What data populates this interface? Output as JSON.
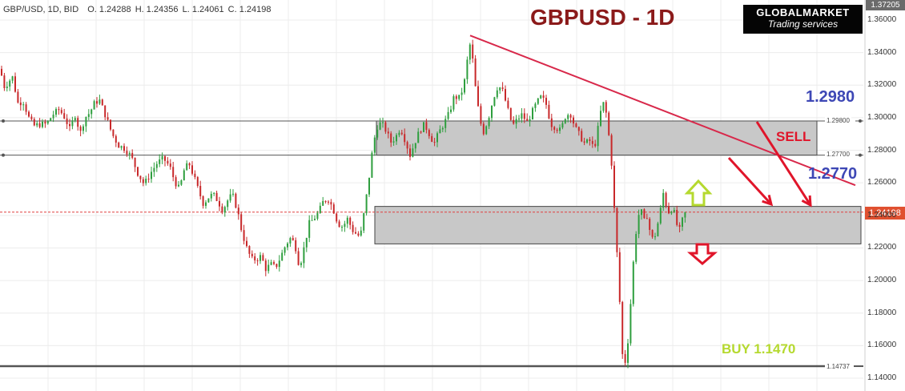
{
  "header": {
    "symbol": "GBP/USD, 1D, BID",
    "open": "O. 1.24288",
    "high": "H. 1.24356",
    "low": "L. 1.24061",
    "close": "C. 1.24198"
  },
  "title": "GBPUSD - 1D",
  "logo": {
    "top": "GLOBALMARKET",
    "bottom": "Trading services"
  },
  "annotations": {
    "level_upper": "1.2980",
    "level_lower": "1.2770",
    "sell": "SELL",
    "buy": "BUY 1.1470"
  },
  "price_axis": {
    "top_value": "1.37205",
    "current_price": "1.24198",
    "ticks": [
      "1.36000",
      "1.34000",
      "1.32000",
      "1.30000",
      "1.28000",
      "1.26000",
      "1.24000",
      "1.22000",
      "1.20000",
      "1.18000",
      "1.16000",
      "1.14000"
    ]
  },
  "levels": {
    "l1": "1.29800",
    "l2": "1.27700",
    "l3": "1.14737"
  },
  "colors": {
    "candle_up": "#2e9e3e",
    "candle_down": "#c8282a",
    "zone_fill": "#c8c8c8",
    "trendline": "#d8284a",
    "arrow_down": "#e0152a",
    "arrow_up_outline": "#b5d92f"
  },
  "chart_data": {
    "type": "candlestick",
    "title": "GBPUSD - 1D",
    "ylim": [
      1.137,
      1.372
    ],
    "current_price": 1.24198,
    "horizontal_levels": [
      1.298,
      1.277,
      1.14737
    ],
    "zones": [
      {
        "low": 1.277,
        "high": 1.298
      },
      {
        "low": 1.2225,
        "high": 1.2455
      }
    ],
    "trendline": {
      "from": 1.3505,
      "to": 1.2585
    },
    "anchors": [
      [
        0,
        1.33
      ],
      [
        6,
        1.318
      ],
      [
        10,
        1.322
      ],
      [
        16,
        1.325
      ],
      [
        22,
        1.309
      ],
      [
        29,
        1.31
      ],
      [
        36,
        1.3
      ],
      [
        42,
        1.295
      ],
      [
        50,
        1.296
      ],
      [
        58,
        1.296
      ],
      [
        66,
        1.302
      ],
      [
        74,
        1.305
      ],
      [
        81,
        1.3
      ],
      [
        87,
        1.293
      ],
      [
        94,
        1.302
      ],
      [
        100,
        1.29
      ],
      [
        106,
        1.3
      ],
      [
        112,
        1.303
      ],
      [
        118,
        1.309
      ],
      [
        124,
        1.311
      ],
      [
        132,
        1.301
      ],
      [
        140,
        1.29
      ],
      [
        148,
        1.283
      ],
      [
        156,
        1.281
      ],
      [
        164,
        1.276
      ],
      [
        172,
        1.266
      ],
      [
        180,
        1.259
      ],
      [
        188,
        1.266
      ],
      [
        196,
        1.272
      ],
      [
        204,
        1.275
      ],
      [
        212,
        1.27
      ],
      [
        218,
        1.261
      ],
      [
        224,
        1.256
      ],
      [
        230,
        1.268
      ],
      [
        236,
        1.272
      ],
      [
        242,
        1.264
      ],
      [
        248,
        1.255
      ],
      [
        254,
        1.247
      ],
      [
        260,
        1.251
      ],
      [
        266,
        1.253
      ],
      [
        272,
        1.249
      ],
      [
        278,
        1.243
      ],
      [
        284,
        1.249
      ],
      [
        290,
        1.253
      ],
      [
        296,
        1.244
      ],
      [
        302,
        1.23
      ],
      [
        308,
        1.22
      ],
      [
        314,
        1.213
      ],
      [
        320,
        1.213
      ],
      [
        326,
        1.215
      ],
      [
        332,
        1.207
      ],
      [
        338,
        1.21
      ],
      [
        344,
        1.208
      ],
      [
        350,
        1.214
      ],
      [
        356,
        1.221
      ],
      [
        362,
        1.226
      ],
      [
        368,
        1.223
      ],
      [
        374,
        1.208
      ],
      [
        380,
        1.221
      ],
      [
        386,
        1.235
      ],
      [
        392,
        1.238
      ],
      [
        398,
        1.242
      ],
      [
        404,
        1.249
      ],
      [
        410,
        1.25
      ],
      [
        416,
        1.244
      ],
      [
        422,
        1.235
      ],
      [
        428,
        1.233
      ],
      [
        434,
        1.238
      ],
      [
        440,
        1.231
      ],
      [
        446,
        1.228
      ],
      [
        450,
        1.227
      ],
      [
        455,
        1.243
      ],
      [
        460,
        1.26
      ],
      [
        465,
        1.28
      ],
      [
        470,
        1.294
      ],
      [
        476,
        1.297
      ],
      [
        482,
        1.292
      ],
      [
        488,
        1.285
      ],
      [
        494,
        1.288
      ],
      [
        500,
        1.294
      ],
      [
        506,
        1.286
      ],
      [
        512,
        1.277
      ],
      [
        518,
        1.285
      ],
      [
        524,
        1.292
      ],
      [
        530,
        1.296
      ],
      [
        536,
        1.29
      ],
      [
        542,
        1.284
      ],
      [
        548,
        1.291
      ],
      [
        555,
        1.297
      ],
      [
        561,
        1.303
      ],
      [
        567,
        1.313
      ],
      [
        573,
        1.312
      ],
      [
        579,
        1.319
      ],
      [
        584,
        1.337
      ],
      [
        588,
        1.348
      ],
      [
        592,
        1.325
      ],
      [
        596,
        1.309
      ],
      [
        600,
        1.297
      ],
      [
        604,
        1.291
      ],
      [
        610,
        1.3
      ],
      [
        616,
        1.312
      ],
      [
        622,
        1.32
      ],
      [
        628,
        1.316
      ],
      [
        634,
        1.305
      ],
      [
        640,
        1.295
      ],
      [
        646,
        1.299
      ],
      [
        652,
        1.302
      ],
      [
        658,
        1.297
      ],
      [
        664,
        1.303
      ],
      [
        670,
        1.309
      ],
      [
        676,
        1.313
      ],
      [
        682,
        1.308
      ],
      [
        688,
        1.296
      ],
      [
        694,
        1.294
      ],
      [
        700,
        1.292
      ],
      [
        706,
        1.301
      ],
      [
        712,
        1.303
      ],
      [
        718,
        1.294
      ],
      [
        724,
        1.289
      ],
      [
        730,
        1.284
      ],
      [
        736,
        1.286
      ],
      [
        742,
        1.281
      ],
      [
        748,
        1.297
      ],
      [
        752,
        1.31
      ],
      [
        756,
        1.306
      ],
      [
        760,
        1.29
      ],
      [
        764,
        1.27
      ],
      [
        768,
        1.235
      ],
      [
        771,
        1.212
      ],
      [
        774,
        1.185
      ],
      [
        777,
        1.155
      ],
      [
        780,
        1.148
      ],
      [
        784,
        1.163
      ],
      [
        788,
        1.19
      ],
      [
        792,
        1.22
      ],
      [
        796,
        1.238
      ],
      [
        800,
        1.244
      ],
      [
        804,
        1.236
      ],
      [
        808,
        1.24
      ],
      [
        812,
        1.229
      ],
      [
        816,
        1.224
      ],
      [
        820,
        1.232
      ],
      [
        824,
        1.241
      ],
      [
        828,
        1.254
      ],
      [
        832,
        1.246
      ],
      [
        836,
        1.241
      ],
      [
        840,
        1.246
      ],
      [
        844,
        1.236
      ],
      [
        848,
        1.23
      ],
      [
        852,
        1.237
      ],
      [
        856,
        1.242
      ]
    ]
  }
}
